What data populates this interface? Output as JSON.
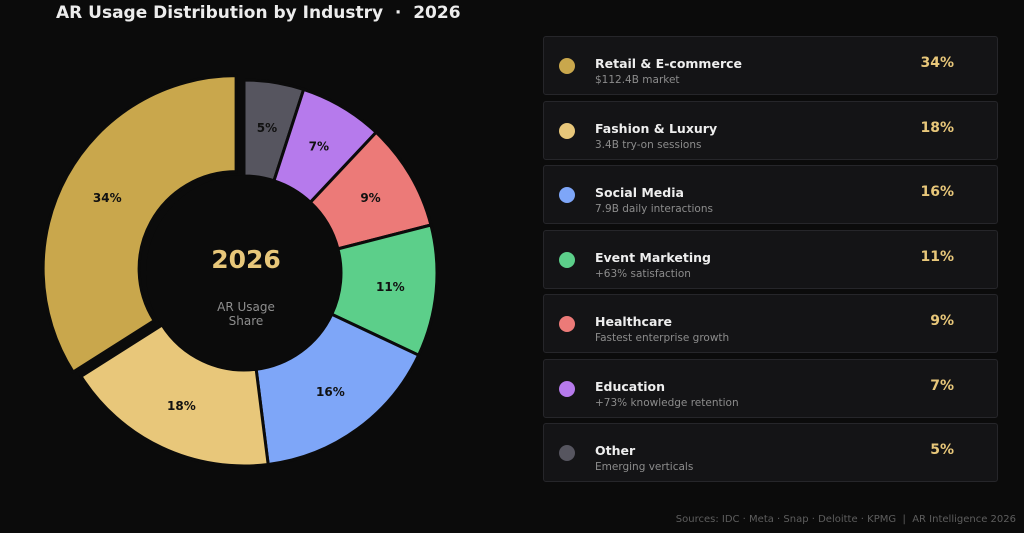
{
  "title": "AR Usage Distribution by Industry  ·  2026",
  "center": {
    "year": "2026",
    "line1": "AR Usage",
    "line2": "Share"
  },
  "footer": "Sources: IDC · Meta · Snap · Deloitte · KPMG  |  AR Intelligence 2026",
  "chart_data": {
    "type": "pie",
    "title": "AR Usage Distribution by Industry  ·  2026",
    "categories": [
      "Retail & E-commerce",
      "Fashion & Luxury",
      "Social Media",
      "Event Marketing",
      "Healthcare",
      "Education",
      "Other"
    ],
    "values": [
      34,
      18,
      16,
      11,
      9,
      7,
      5
    ],
    "labels": [
      "34%",
      "18%",
      "16%",
      "11%",
      "9%",
      "7%",
      "5%"
    ],
    "colors": [
      "#c9a74c",
      "#e8c77a",
      "#7ea6f8",
      "#5ccf8a",
      "#ec7a78",
      "#b67aec",
      "#56555f"
    ],
    "descriptions": [
      "$112.4B market",
      "3.4B try-on sessions",
      "7.9B daily interactions",
      "+63% satisfaction",
      "Fastest enterprise growth",
      "+73% knowledge retention",
      "Emerging verticals"
    ],
    "exploded": "Retail & E-commerce",
    "legend": "right"
  }
}
